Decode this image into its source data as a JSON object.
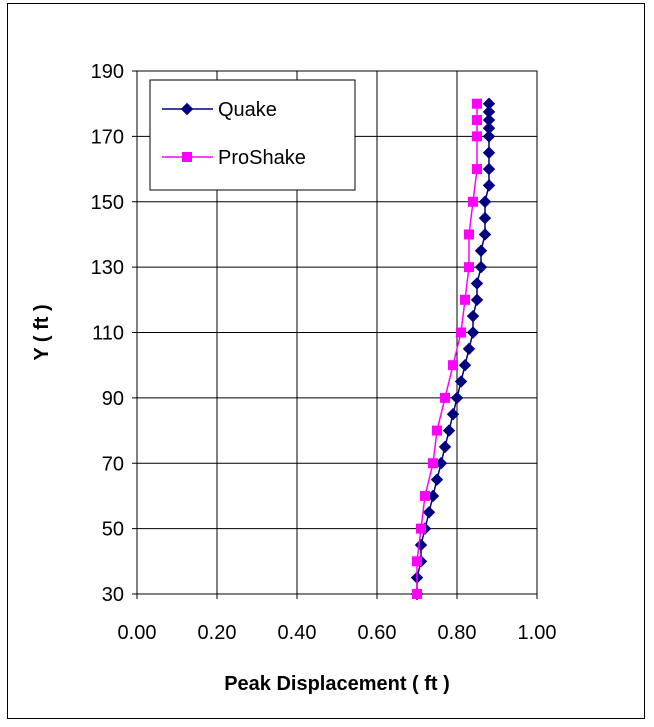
{
  "chart_data": {
    "type": "line",
    "title": "",
    "xlabel": "Peak Displacement ( ft )",
    "ylabel": "Y ( ft )",
    "xlim": [
      0.0,
      1.0
    ],
    "ylim": [
      30,
      190
    ],
    "xticks": [
      "0.00",
      "0.20",
      "0.40",
      "0.60",
      "0.80",
      "1.00"
    ],
    "yticks": [
      "30",
      "50",
      "70",
      "90",
      "110",
      "130",
      "150",
      "170",
      "190"
    ],
    "grid": true,
    "legend_position": "top-left",
    "series": [
      {
        "name": "Quake",
        "color": "#000080",
        "marker": "diamond",
        "points": [
          [
            0.7,
            30
          ],
          [
            0.7,
            35
          ],
          [
            0.71,
            40
          ],
          [
            0.71,
            45
          ],
          [
            0.72,
            50
          ],
          [
            0.73,
            55
          ],
          [
            0.74,
            60
          ],
          [
            0.75,
            65
          ],
          [
            0.76,
            70
          ],
          [
            0.77,
            75
          ],
          [
            0.78,
            80
          ],
          [
            0.79,
            85
          ],
          [
            0.8,
            90
          ],
          [
            0.81,
            95
          ],
          [
            0.82,
            100
          ],
          [
            0.83,
            105
          ],
          [
            0.84,
            110
          ],
          [
            0.84,
            115
          ],
          [
            0.85,
            120
          ],
          [
            0.85,
            125
          ],
          [
            0.86,
            130
          ],
          [
            0.86,
            135
          ],
          [
            0.87,
            140
          ],
          [
            0.87,
            145
          ],
          [
            0.87,
            150
          ],
          [
            0.88,
            155
          ],
          [
            0.88,
            160
          ],
          [
            0.88,
            165
          ],
          [
            0.88,
            170
          ],
          [
            0.88,
            172.5
          ],
          [
            0.88,
            175
          ],
          [
            0.88,
            177.5
          ],
          [
            0.88,
            180
          ]
        ]
      },
      {
        "name": "ProShake",
        "color": "#FF00FF",
        "marker": "square",
        "points": [
          [
            0.7,
            30
          ],
          [
            0.7,
            40
          ],
          [
            0.71,
            50
          ],
          [
            0.72,
            60
          ],
          [
            0.74,
            70
          ],
          [
            0.75,
            80
          ],
          [
            0.77,
            90
          ],
          [
            0.79,
            100
          ],
          [
            0.81,
            110
          ],
          [
            0.82,
            120
          ],
          [
            0.83,
            130
          ],
          [
            0.83,
            140
          ],
          [
            0.84,
            150
          ],
          [
            0.85,
            160
          ],
          [
            0.85,
            170
          ],
          [
            0.85,
            175
          ],
          [
            0.85,
            180
          ]
        ]
      }
    ]
  }
}
